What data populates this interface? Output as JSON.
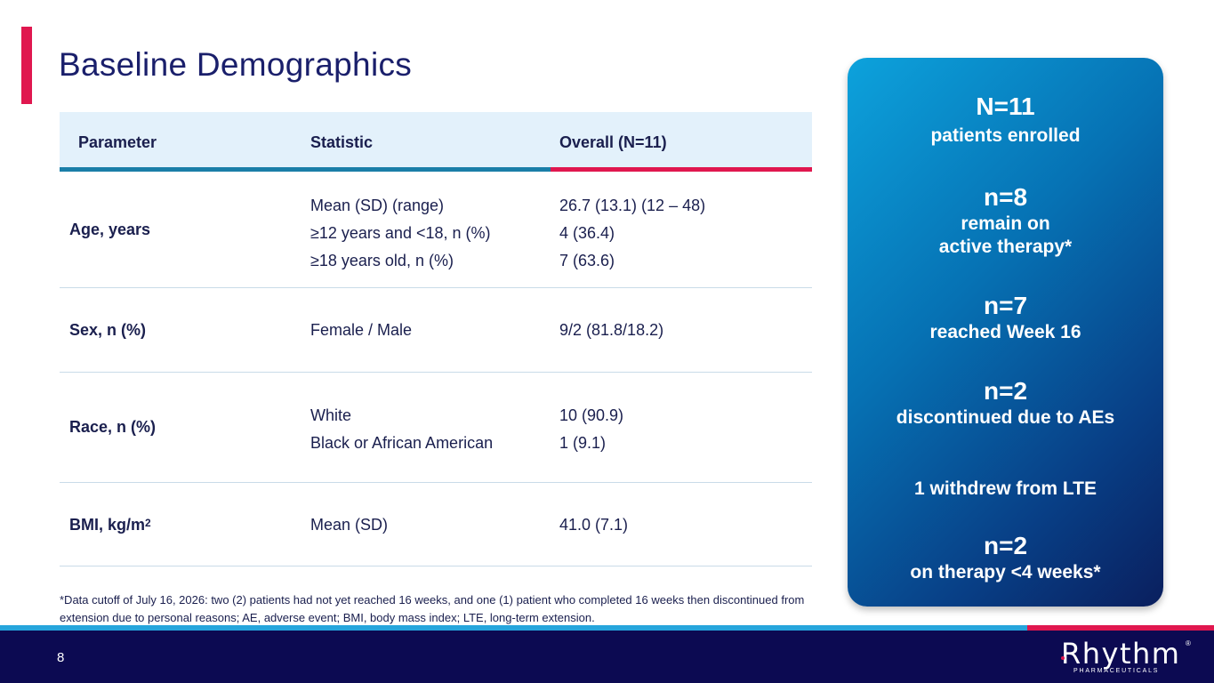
{
  "title": "Baseline Demographics",
  "table": {
    "headers": [
      "Parameter",
      "Statistic",
      "Overall (N=11)"
    ],
    "rows": [
      {
        "parameter": "Age, years",
        "statistics": [
          "Mean (SD) (range)",
          "≥12 years and <18, n (%)",
          "≥18 years old, n (%)"
        ],
        "values": [
          "26.7 (13.1) (12 – 48)",
          "4 (36.4)",
          "7 (63.6)"
        ]
      },
      {
        "parameter": "Sex, n (%)",
        "statistics": [
          "Female / Male"
        ],
        "values": [
          "9/2 (81.8/18.2)"
        ]
      },
      {
        "parameter": "Race, n (%)",
        "statistics": [
          "White",
          "Black or African American"
        ],
        "values": [
          "10 (90.9)",
          "1 (9.1)"
        ]
      },
      {
        "parameter": "BMI, kg/m",
        "parameter_sup": "2",
        "statistics": [
          "Mean (SD)"
        ],
        "values": [
          "41.0 (7.1)"
        ]
      }
    ]
  },
  "footnote": "*Data cutoff of July 16, 2026: two (2) patients had not yet reached 16 weeks, and one (1) patient who completed 16 weeks then discontinued from extension due to personal reasons;   AE, adverse event; BMI, body mass index; LTE, long-term extension.",
  "panel": {
    "n11": "N=11",
    "n11_desc": "patients enrolled",
    "n8": "n=8",
    "n8_desc_1": "remain on",
    "n8_desc_2": "active therapy*",
    "n7": "n=7",
    "n7_desc": "reached Week 16",
    "n2a": "n=2",
    "n2a_desc": "discontinued due to AEs",
    "withdrew": "1 withdrew from LTE",
    "n2b": "n=2",
    "n2b_desc": "on therapy <4 weeks*"
  },
  "footer": {
    "page_number": "8",
    "logo_text": "Rhythm",
    "logo_sub": "PHARMACEUTICALS",
    "logo_reg": "®"
  },
  "colors": {
    "accent_red": "#e0174f",
    "navy": "#0c0a52",
    "blue": "#1a7ea8"
  }
}
